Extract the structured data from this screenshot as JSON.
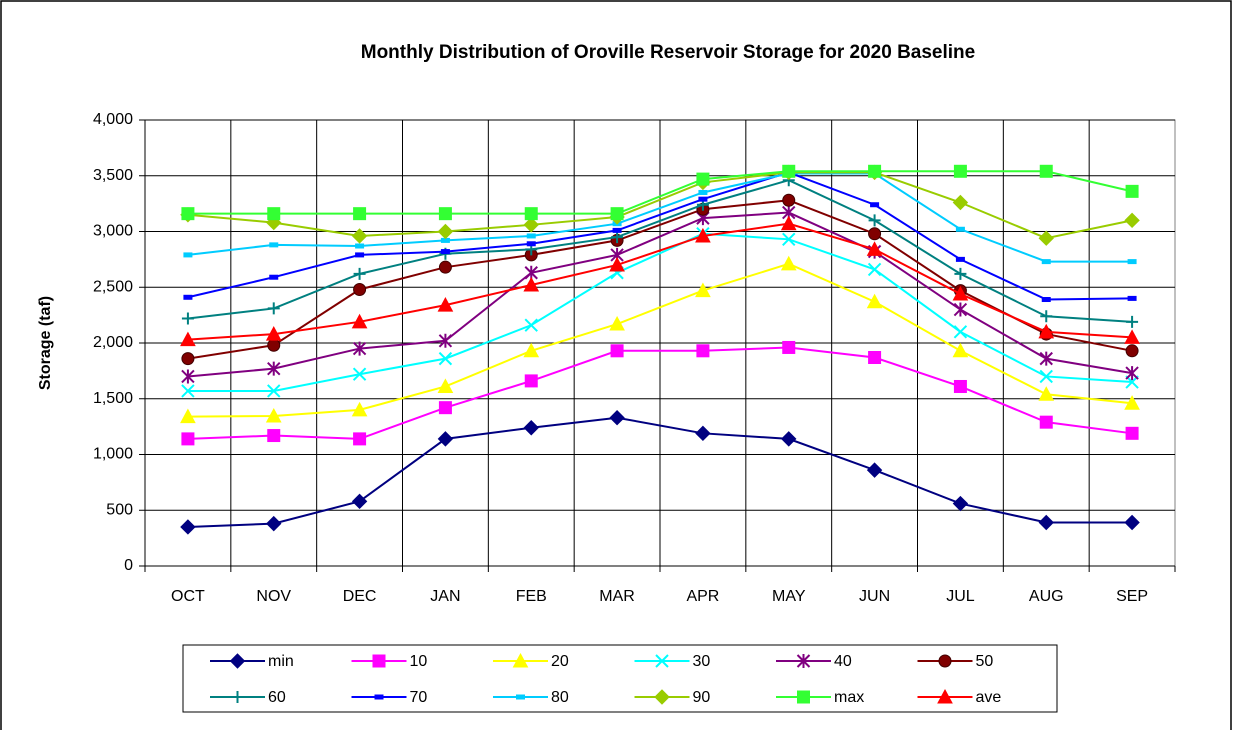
{
  "chart_data": {
    "type": "line",
    "title": "Monthly Distribution of Oroville Reservoir Storage for 2020 Baseline",
    "y_label": "Storage (taf)",
    "categories": [
      "OCT",
      "NOV",
      "DEC",
      "JAN",
      "FEB",
      "MAR",
      "APR",
      "MAY",
      "JUN",
      "JUL",
      "AUG",
      "SEP"
    ],
    "ylim": [
      0,
      4000
    ],
    "yticks": [
      0,
      500,
      {
        "value": 1000,
        "label": "1,000"
      },
      {
        "value": 1500,
        "label": "1,500"
      },
      {
        "value": 2000,
        "label": "2,000"
      },
      {
        "value": 2500,
        "label": "2,500"
      },
      {
        "value": 3000,
        "label": "3,000"
      },
      {
        "value": 3500,
        "label": "3,500"
      },
      {
        "value": 4000,
        "label": "4,000"
      }
    ],
    "grid": true,
    "legend": "bottom",
    "series": [
      {
        "name": "min",
        "color": "#000080",
        "marker": "diamond",
        "values": [
          350,
          380,
          580,
          1140,
          1240,
          1330,
          1190,
          1140,
          860,
          560,
          390,
          390
        ]
      },
      {
        "name": "10",
        "color": "#ff00ff",
        "marker": "square",
        "values": [
          1140,
          1170,
          1140,
          1420,
          1660,
          1930,
          1930,
          1960,
          1870,
          1610,
          1290,
          1190
        ]
      },
      {
        "name": "20",
        "color": "#ffff00",
        "marker": "triangle",
        "values": [
          1340,
          1345,
          1400,
          1610,
          1930,
          2170,
          2470,
          2710,
          2370,
          1930,
          1540,
          1460
        ]
      },
      {
        "name": "30",
        "color": "#00ffff",
        "marker": "x",
        "values": [
          1570,
          1570,
          1720,
          1860,
          2160,
          2630,
          2980,
          2930,
          2660,
          2100,
          1700,
          1650
        ]
      },
      {
        "name": "40",
        "color": "#800080",
        "marker": "star",
        "values": [
          1700,
          1770,
          1950,
          2020,
          2630,
          2790,
          3120,
          3170,
          2820,
          2300,
          1860,
          1730
        ]
      },
      {
        "name": "50",
        "color": "#800000",
        "marker": "circle",
        "values": [
          1860,
          1980,
          2480,
          2680,
          2790,
          2920,
          3200,
          3280,
          2980,
          2470,
          2080,
          1930
        ]
      },
      {
        "name": "60",
        "color": "#008080",
        "marker": "plus",
        "values": [
          2220,
          2310,
          2620,
          2800,
          2840,
          2950,
          3240,
          3460,
          3100,
          2620,
          2240,
          2190
        ]
      },
      {
        "name": "70",
        "color": "#0000ff",
        "marker": "dash",
        "values": [
          2410,
          2590,
          2790,
          2820,
          2890,
          3010,
          3290,
          3530,
          3240,
          2750,
          2390,
          2400
        ]
      },
      {
        "name": "80",
        "color": "#00ccff",
        "marker": "dash",
        "values": [
          2790,
          2880,
          2870,
          2920,
          2960,
          3070,
          3350,
          3520,
          3520,
          3020,
          2730,
          2730
        ]
      },
      {
        "name": "90",
        "color": "#99cc00",
        "marker": "diamond",
        "values": [
          3150,
          3080,
          2960,
          3000,
          3060,
          3130,
          3440,
          3530,
          3530,
          3260,
          2940,
          3100
        ]
      },
      {
        "name": "max",
        "color": "#33ff33",
        "marker": "square",
        "values": [
          3160,
          3160,
          3160,
          3160,
          3160,
          3160,
          3470,
          3540,
          3540,
          3540,
          3540,
          3360
        ]
      },
      {
        "name": "ave",
        "color": "#ff0000",
        "marker": "triangle",
        "values": [
          2030,
          2080,
          2190,
          2340,
          2520,
          2700,
          2960,
          3070,
          2840,
          2440,
          2100,
          2050
        ]
      }
    ]
  }
}
